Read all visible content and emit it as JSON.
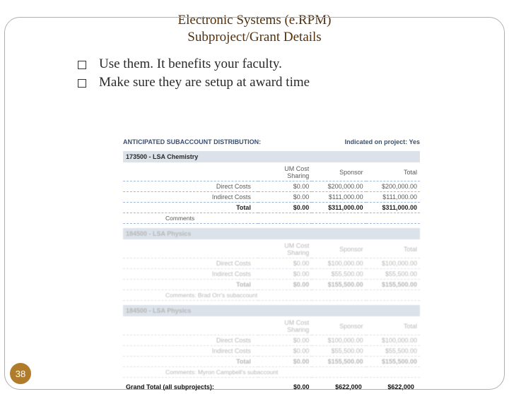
{
  "title": {
    "line1": "Electronic Systems (e.RPM)",
    "line2": "Subproject/Grant Details"
  },
  "bullets": [
    "Use them.  It benefits your faculty.",
    "Make sure they are setup at award time"
  ],
  "section_header": {
    "left": "ANTICIPATED SUBACCOUNT DISTRIBUTION:",
    "right": "Indicated on project: Yes"
  },
  "columns": [
    "UM Cost Sharing",
    "Sponsor",
    "Total"
  ],
  "accounts": [
    {
      "header": "173500 - LSA Chemistry",
      "blurred": false,
      "rows": [
        {
          "label": "Direct Costs",
          "um": "$0.00",
          "sponsor": "$200,000.00",
          "total": "$200,000.00"
        },
        {
          "label": "Indirect Costs",
          "um": "$0.00",
          "sponsor": "$111,000.00",
          "total": "$111,000.00"
        }
      ],
      "total": {
        "label": "Total",
        "um": "$0.00",
        "sponsor": "$311,000.00",
        "total": "$311,000.00"
      },
      "comments": "Comments"
    },
    {
      "header": "184500 - LSA Physics",
      "blurred": true,
      "rows": [
        {
          "label": "Direct Costs",
          "um": "$0.00",
          "sponsor": "$100,000.00",
          "total": "$100,000.00"
        },
        {
          "label": "Indirect Costs",
          "um": "$0.00",
          "sponsor": "$55,500.00",
          "total": "$55,500.00"
        }
      ],
      "total": {
        "label": "Total",
        "um": "$0.00",
        "sponsor": "$155,500.00",
        "total": "$155,500.00"
      },
      "comments": "Comments: Brad Orr's subaccount"
    },
    {
      "header": "184500 - LSA Physics",
      "blurred": true,
      "rows": [
        {
          "label": "Direct Costs",
          "um": "$0.00",
          "sponsor": "$100,000.00",
          "total": "$100,000.00"
        },
        {
          "label": "Indirect Costs",
          "um": "$0.00",
          "sponsor": "$55,500.00",
          "total": "$55,500.00"
        }
      ],
      "total": {
        "label": "Total",
        "um": "$0.00",
        "sponsor": "$155,500.00",
        "total": "$155,500.00"
      },
      "comments": "Comments: Myron Campbell's subaccount"
    }
  ],
  "grand_total": {
    "label": "Grand Total (all subprojects):",
    "um": "$0.00",
    "sponsor": "$622,000",
    "total": "$622,000"
  },
  "page_number": "38"
}
